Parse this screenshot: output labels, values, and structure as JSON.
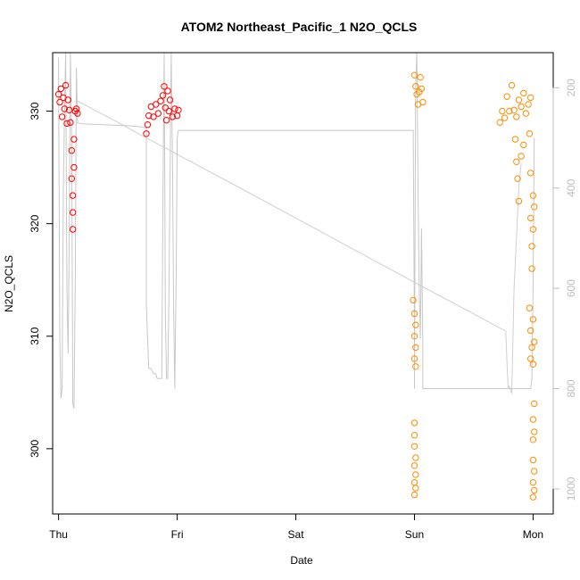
{
  "chart_data": {
    "type": "scatter",
    "title": "ATOM2 Northeast_Pacific_1 N2O_QCLS",
    "xlabel": "Date",
    "ylabel": "N2O_QCLS",
    "x_unit": "day",
    "xlim": [
      -0.05,
      4.17
    ],
    "ylim": [
      294.2,
      335.2
    ],
    "x_ticks": [
      {
        "value": 0,
        "label": "Thu"
      },
      {
        "value": 1,
        "label": "Fri"
      },
      {
        "value": 2,
        "label": "Sat"
      },
      {
        "value": 3,
        "label": "Sun"
      },
      {
        "value": 4,
        "label": "Mon"
      }
    ],
    "y_ticks": [
      300,
      310,
      320,
      330
    ],
    "y2": {
      "label": "",
      "lim": [
        1050,
        130
      ],
      "ticks": [
        200,
        400,
        600,
        800,
        1000
      ],
      "color": "#bdbdbd"
    },
    "series": [
      {
        "color": "#ff0000",
        "marker": "open-circle",
        "points": [
          [
            0.0,
            331.5
          ],
          [
            0.01,
            330.8
          ],
          [
            0.02,
            332.0
          ],
          [
            0.03,
            329.5
          ],
          [
            0.04,
            331.2
          ],
          [
            0.05,
            330.2
          ],
          [
            0.06,
            332.3
          ],
          [
            0.07,
            328.9
          ],
          [
            0.08,
            331.0
          ],
          [
            0.09,
            330.1
          ],
          [
            0.1,
            329.0
          ],
          [
            0.11,
            326.5
          ],
          [
            0.11,
            324.0
          ],
          [
            0.12,
            322.5
          ],
          [
            0.12,
            321.0
          ],
          [
            0.12,
            319.5
          ],
          [
            0.13,
            327.5
          ],
          [
            0.13,
            325.0
          ],
          [
            0.14,
            330.0
          ],
          [
            0.15,
            330.2
          ],
          [
            0.16,
            329.8
          ],
          [
            0.74,
            328.0
          ],
          [
            0.75,
            328.8
          ],
          [
            0.76,
            329.6
          ],
          [
            0.78,
            330.4
          ],
          [
            0.8,
            329.5
          ],
          [
            0.82,
            330.6
          ],
          [
            0.84,
            329.8
          ],
          [
            0.86,
            330.9
          ],
          [
            0.88,
            331.4
          ],
          [
            0.89,
            332.2
          ],
          [
            0.9,
            330.3
          ],
          [
            0.91,
            329.2
          ],
          [
            0.92,
            331.8
          ],
          [
            0.93,
            330.0
          ],
          [
            0.94,
            331.0
          ],
          [
            0.96,
            329.5
          ],
          [
            0.98,
            330.2
          ],
          [
            1.0,
            329.6
          ],
          [
            1.01,
            330.1
          ]
        ]
      },
      {
        "color": "#ff8c00",
        "marker": "open-circle",
        "points": [
          [
            3.0,
            333.2
          ],
          [
            3.01,
            332.2
          ],
          [
            3.02,
            331.5
          ],
          [
            3.03,
            330.6
          ],
          [
            3.04,
            331.7
          ],
          [
            3.05,
            333.0
          ],
          [
            3.06,
            332.0
          ],
          [
            3.07,
            330.8
          ],
          [
            2.99,
            313.2
          ],
          [
            3.0,
            312.0
          ],
          [
            3.01,
            311.0
          ],
          [
            3.0,
            310.0
          ],
          [
            3.01,
            309.0
          ],
          [
            3.0,
            308.0
          ],
          [
            3.01,
            307.3
          ],
          [
            3.0,
            302.3
          ],
          [
            3.0,
            301.2
          ],
          [
            3.0,
            300.2
          ],
          [
            3.01,
            299.2
          ],
          [
            3.0,
            298.5
          ],
          [
            3.01,
            297.7
          ],
          [
            3.0,
            297.0
          ],
          [
            3.01,
            296.5
          ],
          [
            3.0,
            295.9
          ],
          [
            3.72,
            329.0
          ],
          [
            3.74,
            330.0
          ],
          [
            3.76,
            329.4
          ],
          [
            3.78,
            331.3
          ],
          [
            3.8,
            330.0
          ],
          [
            3.82,
            332.3
          ],
          [
            3.84,
            330.1
          ],
          [
            3.86,
            329.5
          ],
          [
            3.88,
            331.0
          ],
          [
            3.9,
            330.4
          ],
          [
            3.92,
            331.6
          ],
          [
            3.94,
            329.8
          ],
          [
            3.96,
            330.6
          ],
          [
            3.98,
            331.2
          ],
          [
            3.85,
            327.5
          ],
          [
            3.86,
            325.5
          ],
          [
            3.87,
            324.0
          ],
          [
            3.88,
            322.0
          ],
          [
            3.9,
            326.0
          ],
          [
            3.92,
            327.0
          ],
          [
            3.97,
            328.0
          ],
          [
            3.98,
            324.5
          ],
          [
            3.98,
            320.5
          ],
          [
            3.99,
            318.0
          ],
          [
            3.99,
            316.0
          ],
          [
            4.0,
            322.5
          ],
          [
            4.0,
            319.5
          ],
          [
            4.01,
            321.5
          ],
          [
            3.97,
            312.5
          ],
          [
            3.98,
            310.5
          ],
          [
            3.99,
            309.0
          ],
          [
            4.0,
            307.5
          ],
          [
            3.98,
            308.0
          ],
          [
            4.0,
            311.5
          ],
          [
            4.01,
            309.5
          ],
          [
            4.01,
            304.0
          ],
          [
            4.0,
            302.6
          ],
          [
            4.01,
            301.5
          ],
          [
            4.0,
            300.8
          ],
          [
            4.0,
            299.0
          ],
          [
            4.01,
            298.0
          ],
          [
            4.0,
            297.0
          ],
          [
            4.01,
            296.3
          ],
          [
            4.0,
            295.7
          ]
        ]
      }
    ],
    "secondary_line": {
      "color": "#c8c8c8",
      "axis": "y2",
      "points": [
        [
          0.0,
          140
        ],
        [
          0.01,
          700
        ],
        [
          0.02,
          820
        ],
        [
          0.03,
          800
        ],
        [
          0.04,
          400
        ],
        [
          0.05,
          250
        ],
        [
          0.06,
          130
        ],
        [
          0.07,
          600
        ],
        [
          0.08,
          730
        ],
        [
          0.09,
          500
        ],
        [
          0.1,
          130
        ],
        [
          0.11,
          300
        ],
        [
          0.12,
          830
        ],
        [
          0.13,
          840
        ],
        [
          0.14,
          600
        ],
        [
          0.15,
          160
        ],
        [
          0.16,
          270
        ],
        [
          0.2,
          272
        ],
        [
          0.4,
          274
        ],
        [
          0.6,
          276
        ],
        [
          0.7,
          278
        ],
        [
          0.74,
          280
        ],
        [
          0.74,
          630
        ],
        [
          0.75,
          700
        ],
        [
          0.76,
          760
        ],
        [
          0.78,
          760
        ],
        [
          0.8,
          770
        ],
        [
          0.82,
          770
        ],
        [
          0.83,
          780
        ],
        [
          0.85,
          780
        ],
        [
          0.87,
          780
        ],
        [
          0.88,
          420
        ],
        [
          0.89,
          130
        ],
        [
          0.9,
          650
        ],
        [
          0.91,
          780
        ],
        [
          0.92,
          780
        ],
        [
          0.93,
          620
        ],
        [
          0.95,
          130
        ],
        [
          0.96,
          350
        ],
        [
          0.97,
          640
        ],
        [
          0.98,
          800
        ],
        [
          0.99,
          600
        ],
        [
          1.0,
          300
        ],
        [
          1.01,
          285
        ],
        [
          2.99,
          285
        ],
        [
          3.0,
          700
        ],
        [
          3.0,
          800
        ],
        [
          3.01,
          200
        ],
        [
          3.02,
          130
        ],
        [
          3.03,
          400
        ],
        [
          3.04,
          600
        ],
        [
          3.05,
          700
        ],
        [
          3.06,
          480
        ],
        [
          3.07,
          700
        ],
        [
          3.07,
          800
        ],
        [
          3.95,
          800
        ],
        [
          3.98,
          800
        ],
        [
          3.99,
          780
        ],
        [
          4.0,
          600
        ],
        [
          4.01,
          300
        ]
      ]
    },
    "background_line": {
      "color": "#d0d0d0",
      "axis": "y2",
      "points": [
        [
          0.15,
          225
        ],
        [
          0.3,
          244
        ],
        [
          0.5,
          269
        ],
        [
          0.7,
          295
        ],
        [
          0.9,
          320
        ],
        [
          1.0,
          333
        ],
        [
          1.5,
          396
        ],
        [
          2.0,
          460
        ],
        [
          2.5,
          524
        ],
        [
          3.0,
          588
        ],
        [
          3.5,
          651
        ],
        [
          3.75,
          683
        ],
        [
          3.77,
          685
        ],
        [
          3.78,
          750
        ],
        [
          3.79,
          800
        ],
        [
          3.8,
          795
        ],
        [
          3.82,
          810
        ],
        [
          3.84,
          600
        ],
        [
          3.86,
          500
        ],
        [
          3.88,
          400
        ],
        [
          3.9,
          350
        ]
      ]
    }
  }
}
